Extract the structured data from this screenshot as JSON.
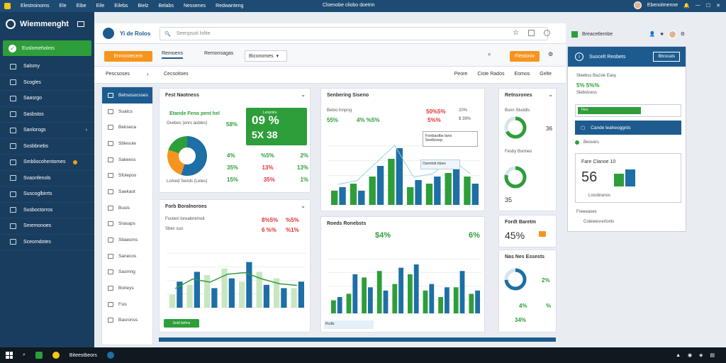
{
  "window": {
    "menu": [
      "Elestroinoms",
      "Ele",
      "Eibe",
      "Eile",
      "Eilebs",
      "Bielz",
      "Belabs",
      "Nessenes",
      "Redwanteng"
    ],
    "title": "Cloenobe cliobo doetrin",
    "user": "Ebenolmenne"
  },
  "sidebar": {
    "brand": "Wiemmenght",
    "active": "Euslomeholms",
    "items": [
      {
        "label": "Salsmy"
      },
      {
        "label": "Scogles"
      },
      {
        "label": "Saasrgo"
      },
      {
        "label": "Sasbstos"
      },
      {
        "label": "Sanlorogs"
      },
      {
        "label": "Sosbbnebs"
      },
      {
        "label": "Smbliocohentomes",
        "badge": true
      },
      {
        "label": "Svaonfenols"
      },
      {
        "label": "Suscoglbirrts"
      },
      {
        "label": "Susboctorros"
      },
      {
        "label": "Smemonoes"
      },
      {
        "label": "Sceomdotes"
      }
    ]
  },
  "topbar": {
    "app_name": "Yi de Rolos",
    "search_placeholder": "Seenpsoti lofite"
  },
  "toolbar": {
    "btn1": "Enmovtecem",
    "tab1": "Remoens",
    "tab2": "Remonsagas",
    "dropdown": "Biconomes",
    "btn2": "Flestoniv"
  },
  "filterbar": {
    "left": "Pescsoses",
    "item": "Cecsoitoes",
    "right": [
      "Peore",
      "Ciste Rados",
      "Eomos",
      "Gelte"
    ]
  },
  "subnav": {
    "items": [
      "Behsosocsses",
      "Suatcs",
      "Bekseca",
      "Sblesoie",
      "Saleiess",
      "Sfolepos",
      "Saekaot",
      "Busis",
      "Srasaps",
      "Sbaesms",
      "Sanecos",
      "Sasmng",
      "Borieys",
      "Fsis",
      "Basronss"
    ]
  },
  "card_a": {
    "title": "Fest Naotness",
    "badge": "Etande Feno pent hel",
    "sub": "Ovebes (enrs aubles)",
    "p1": "58%",
    "big1": "09 %",
    "big2": "5X 38",
    "tag": "Lenpntrs",
    "r1": [
      "4%",
      "%5%",
      "2%"
    ],
    "r2": [
      "35%",
      "13%",
      "13%"
    ],
    "r3": [
      "15%",
      "35%",
      "1%"
    ],
    "foot": "Lomed Seirds (Letes)"
  },
  "card_b": {
    "title": "Forb Boralnoroes",
    "l1": "Focteni loreabnemsit",
    "v1": "8%5%",
    "v2": "%5%",
    "l2": "Sbes suo",
    "v3": "6 %%",
    "v4": "%1%",
    "btn": "Sold bsfms"
  },
  "card_c": {
    "title": "Senbering Siseno",
    "l1": "Betvo lnnpng",
    "v1": "55%",
    "v2": "4% %5%",
    "v3": "50%5%",
    "v4": "20%",
    "v5": "5%%",
    "v6": "$ 39%",
    "callout1": "Fonbaolbs lans",
    "callout2": "5eelbrsep",
    "callout3": "Oarmtob bloes"
  },
  "card_d": {
    "title": "Roeds Ronebsts",
    "v1": "$4%",
    "v2": "6%",
    "foot": "Rcdis"
  },
  "card_e": {
    "title": "Retnsrones",
    "l1": "Bsnn Studdls",
    "v1": "36",
    "l2": "Fesby Bsrmes",
    "v2": "35"
  },
  "card_f": {
    "title": "Fordt Baretm",
    "v1": "45%"
  },
  "card_g": {
    "title": "Nas Nes Essests",
    "v1": "2%",
    "v2": "4%",
    "v3": "34%",
    "v4": "%"
  },
  "rightpanel": {
    "header": "Breacetlembe",
    "title": "Suocelt Reobets",
    "btn": "Bbrocats",
    "l1": "Sleebss Bazsle Easy",
    "v1": "5% 5%%",
    "l2": "Slebstcess",
    "bar_label": "Fles",
    "link": "Cande leaheoggnts",
    "l3": "Beovers",
    "sub": "Fare Clanoe 10",
    "big": "56",
    "l4": "Lossbranos",
    "l5": "Freeeaoes",
    "l6": "Coleieesrertonls"
  },
  "taskbar": {
    "label": "Biteestbeors"
  },
  "chart_a": {
    "type": "pie",
    "values": [
      55,
      25,
      20
    ]
  },
  "chart_b": {
    "type": "bar",
    "values": [
      [
        20,
        40
      ],
      [
        35,
        55
      ],
      [
        50,
        30
      ],
      [
        60,
        45
      ],
      [
        40,
        70
      ],
      [
        55,
        35
      ],
      [
        45,
        30
      ],
      [
        30,
        40
      ]
    ]
  },
  "chart_c": {
    "type": "bar",
    "values": [
      [
        20,
        25
      ],
      [
        30,
        20
      ],
      [
        40,
        55
      ],
      [
        65,
        80
      ],
      [
        25,
        35
      ],
      [
        30,
        40
      ],
      [
        45,
        60
      ],
      [
        40,
        30
      ]
    ]
  },
  "chart_d": {
    "type": "bar",
    "values": [
      [
        20,
        25
      ],
      [
        30,
        60
      ],
      [
        55,
        40
      ],
      [
        65,
        35
      ],
      [
        45,
        70
      ],
      [
        60,
        75
      ],
      [
        35,
        45
      ],
      [
        25,
        40
      ],
      [
        40,
        65
      ],
      [
        30,
        35
      ]
    ]
  }
}
